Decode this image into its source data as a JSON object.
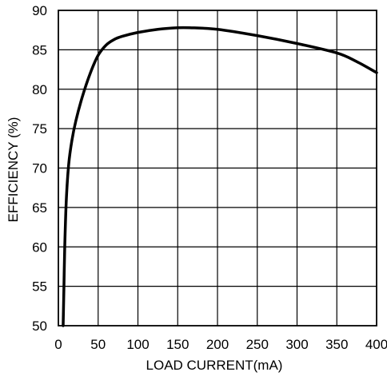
{
  "chart_data": {
    "type": "line",
    "title": "",
    "xlabel": "LOAD CURRENT(mA)",
    "ylabel": "EFFICIENCY (%)",
    "xlim": [
      0,
      400
    ],
    "ylim": [
      50,
      90
    ],
    "xticks": [
      0,
      50,
      100,
      150,
      200,
      250,
      300,
      350,
      400
    ],
    "yticks": [
      50,
      55,
      60,
      65,
      70,
      75,
      80,
      85,
      90
    ],
    "grid": true,
    "legend": "none",
    "line_color": "#000000",
    "series": [
      {
        "x": [
          6,
          7,
          8,
          10,
          13,
          17,
          22,
          30,
          40,
          50,
          60,
          70,
          80,
          100,
          125,
          150,
          165,
          200,
          250,
          300,
          350,
          375,
          400
        ],
        "y": [
          50,
          55,
          60,
          66,
          70.5,
          73.5,
          76,
          79,
          82,
          84.3,
          85.6,
          86.3,
          86.7,
          87.2,
          87.6,
          87.8,
          87.8,
          87.6,
          86.8,
          85.8,
          84.6,
          83.5,
          82.1
        ]
      }
    ]
  }
}
